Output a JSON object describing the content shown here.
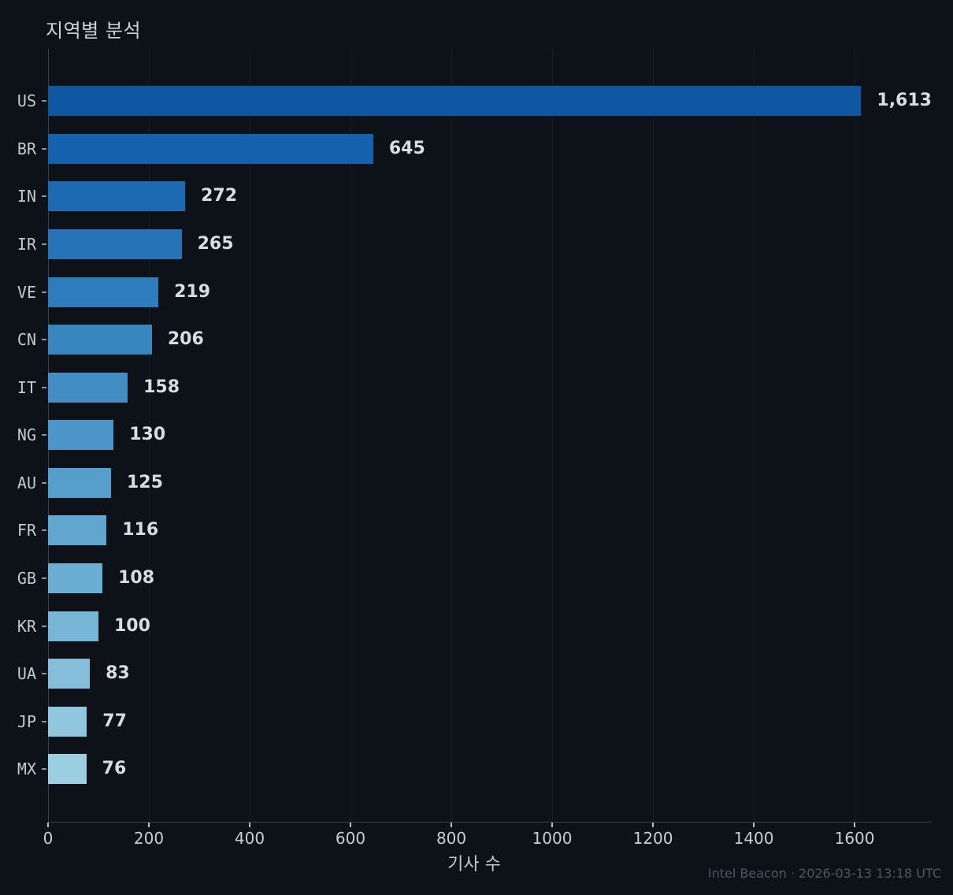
{
  "title": "지역별 분석",
  "footer": {
    "text": "Intel Beacon · 2026-03-13 13:18 UTC"
  },
  "chart_data": {
    "type": "bar",
    "orientation": "horizontal",
    "title": "지역별 분석",
    "xlabel": "기사 수",
    "ylabel": "",
    "categories": [
      "US",
      "BR",
      "IN",
      "IR",
      "VE",
      "CN",
      "IT",
      "NG",
      "AU",
      "FR",
      "GB",
      "KR",
      "UA",
      "JP",
      "MX"
    ],
    "values": [
      1613,
      645,
      272,
      265,
      219,
      206,
      158,
      130,
      125,
      116,
      108,
      100,
      83,
      77,
      76
    ],
    "value_labels": [
      "1,613",
      "645",
      "272",
      "265",
      "219",
      "206",
      "158",
      "130",
      "125",
      "116",
      "108",
      "100",
      "83",
      "77",
      "76"
    ],
    "bar_colors": [
      "#0f56a3",
      "#1661ad",
      "#1e6ab2",
      "#2673b7",
      "#2e7cbb",
      "#3885c0",
      "#428dc4",
      "#4c95c8",
      "#569ecb",
      "#61a6cf",
      "#6caed3",
      "#78b6d7",
      "#84bedb",
      "#90c6de",
      "#9ccee2"
    ],
    "xlim": [
      0,
      1753
    ],
    "x_ticks": [
      0,
      200,
      400,
      600,
      800,
      1000,
      1200,
      1400,
      1600
    ],
    "x_tick_labels": [
      "0",
      "200",
      "400",
      "600",
      "800",
      "1000",
      "1200",
      "1400",
      "1600"
    ],
    "grid": "vertical",
    "legend": "none",
    "theme": {
      "background": "#0d1118",
      "grid_color": "#171c27",
      "spine_color": "#3a414e",
      "tick_color": "#b9bfc6",
      "text_color": "#c9ced5",
      "value_label_color": "#d9dde2",
      "footer_color": "#4e5663"
    }
  }
}
